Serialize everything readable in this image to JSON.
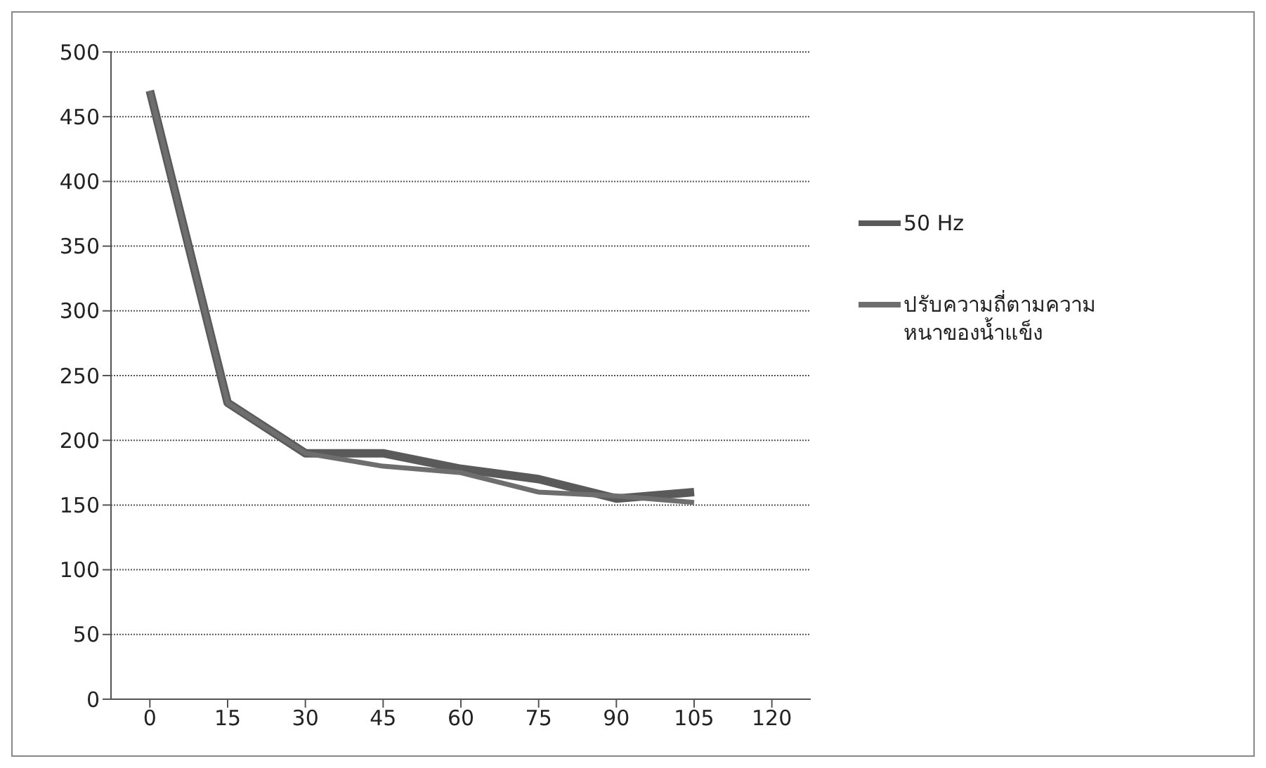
{
  "chart_data": {
    "type": "line",
    "categories": [
      "0",
      "15",
      "30",
      "45",
      "60",
      "75",
      "90",
      "105",
      "120"
    ],
    "series": [
      {
        "name": "50 Hz",
        "color": "#5a5a5a",
        "values": [
          470,
          229,
          190,
          190,
          178,
          170,
          155,
          160,
          null
        ]
      },
      {
        "name": "ปรับความถี่ตามความหนาของน้ำแข็ง",
        "color": "#6e6e6e",
        "values": [
          470,
          229,
          190,
          180,
          175,
          160,
          157,
          152,
          null
        ]
      }
    ],
    "ylim": [
      0,
      500
    ],
    "yticks": [
      0,
      50,
      100,
      150,
      200,
      250,
      300,
      350,
      400,
      450,
      500
    ],
    "grid": "y",
    "legend": "right",
    "marker": "none",
    "line_style": "solid"
  }
}
